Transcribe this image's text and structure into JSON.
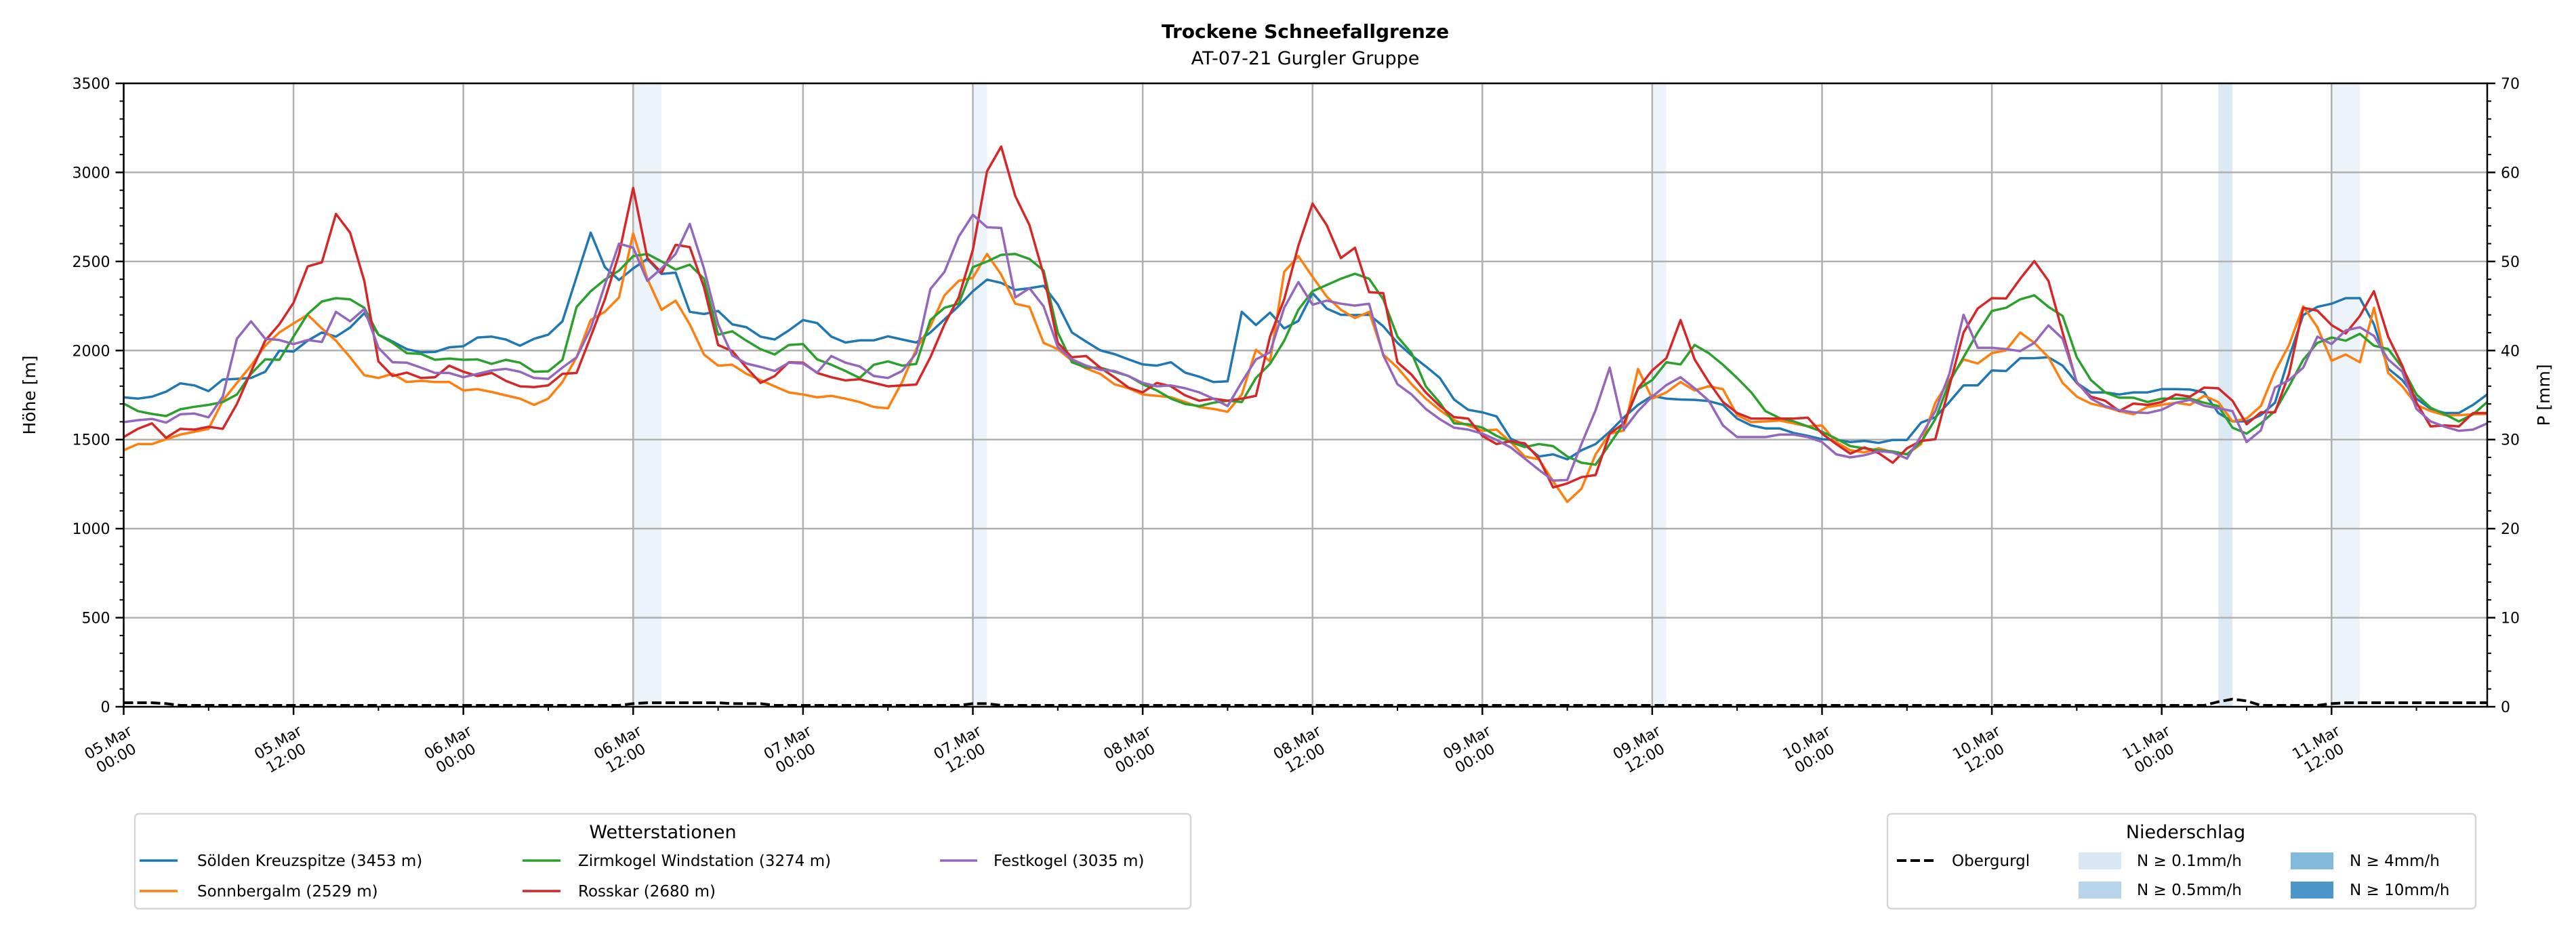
{
  "chart_data": {
    "type": "line",
    "title": "Trockene Schneefallgrenze",
    "subtitle": "AT-07-21 Gurgler Gruppe",
    "ylabel": "Höhe [m]",
    "ylabel_right": "P [mm]",
    "ylim": [
      0,
      3500
    ],
    "ylim_right": [
      0,
      70
    ],
    "yticks": [
      "0",
      "500",
      "1000",
      "1500",
      "2000",
      "2500",
      "3000",
      "3500"
    ],
    "yticks_right": [
      "0",
      "10",
      "20",
      "30",
      "40",
      "50",
      "60",
      "70"
    ],
    "x_unit": "hours since 05.Mar 00:00",
    "x_range_hours": [
      0,
      167
    ],
    "grid": true,
    "xticks": [
      {
        "date": "05.Mar",
        "time": "00:00"
      },
      {
        "date": "05.Mar",
        "time": "12:00"
      },
      {
        "date": "06.Mar",
        "time": "00:00"
      },
      {
        "date": "06.Mar",
        "time": "12:00"
      },
      {
        "date": "07.Mar",
        "time": "00:00"
      },
      {
        "date": "07.Mar",
        "time": "12:00"
      },
      {
        "date": "08.Mar",
        "time": "00:00"
      },
      {
        "date": "08.Mar",
        "time": "12:00"
      },
      {
        "date": "09.Mar",
        "time": "00:00"
      },
      {
        "date": "09.Mar",
        "time": "12:00"
      },
      {
        "date": "10.Mar",
        "time": "00:00"
      },
      {
        "date": "10.Mar",
        "time": "12:00"
      },
      {
        "date": "11.Mar",
        "time": "00:00"
      },
      {
        "date": "11.Mar",
        "time": "12:00"
      }
    ],
    "series": [
      {
        "name": "Sölden Kreuzspitze (3453 m)",
        "color": "#1f77b4",
        "values": [
          1737,
          1730,
          1741,
          1769,
          1816,
          1804,
          1772,
          1837,
          1841,
          1846,
          1881,
          1999,
          1994,
          2055,
          2101,
          2078,
          2129,
          2210,
          2089,
          2050,
          2008,
          1990,
          1992,
          2018,
          2024,
          2073,
          2078,
          2062,
          2027,
          2066,
          2089,
          2164,
          2414,
          2662,
          2468,
          2396,
          2461,
          2514,
          2430,
          2437,
          2217,
          2205,
          2222,
          2147,
          2131,
          2078,
          2062,
          2113,
          2171,
          2154,
          2078,
          2045,
          2057,
          2057,
          2080,
          2062,
          2045,
          2101,
          2175,
          2250,
          2333,
          2398,
          2380,
          2340,
          2350,
          2363,
          2259,
          2101,
          2050,
          2001,
          1980,
          1950,
          1922,
          1915,
          1934,
          1876,
          1853,
          1823,
          1827,
          2217,
          2143,
          2213,
          2124,
          2166,
          2322,
          2236,
          2201,
          2199,
          2201,
          2136,
          2043,
          1973,
          1911,
          1846,
          1725,
          1667,
          1653,
          1630,
          1505,
          1470,
          1405,
          1417,
          1389,
          1440,
          1475,
          1544,
          1625,
          1695,
          1746,
          1730,
          1725,
          1723,
          1716,
          1695,
          1618,
          1579,
          1563,
          1563,
          1537,
          1521,
          1502,
          1498,
          1486,
          1493,
          1481,
          1498,
          1498,
          1595,
          1625,
          1711,
          1804,
          1804,
          1888,
          1885,
          1957,
          1957,
          1962,
          1915,
          1818,
          1765,
          1765,
          1753,
          1765,
          1765,
          1783,
          1783,
          1781,
          1765,
          1649,
          1602,
          1602,
          1637,
          1707,
          1962,
          2199,
          2245,
          2263,
          2294,
          2294,
          2147,
          1899,
          1834,
          1730,
          1672,
          1649,
          1649,
          1695,
          1753
        ]
      },
      {
        "name": "Sonnbergalm (2529 m)",
        "color": "#ff7f0e",
        "values": [
          1440,
          1475,
          1475,
          1502,
          1528,
          1544,
          1560,
          1718,
          1818,
          1915,
          2027,
          2101,
          2152,
          2201,
          2124,
          2055,
          1962,
          1862,
          1846,
          1869,
          1823,
          1830,
          1823,
          1823,
          1776,
          1783,
          1767,
          1748,
          1730,
          1695,
          1730,
          1823,
          1962,
          2171,
          2217,
          2298,
          2658,
          2403,
          2229,
          2280,
          2147,
          1978,
          1915,
          1920,
          1869,
          1834,
          1799,
          1765,
          1753,
          1737,
          1746,
          1730,
          1711,
          1683,
          1676,
          1823,
          2008,
          2136,
          2310,
          2391,
          2408,
          2542,
          2426,
          2263,
          2245,
          2043,
          2008,
          1943,
          1899,
          1869,
          1811,
          1788,
          1753,
          1746,
          1737,
          1711,
          1683,
          1672,
          1656,
          1753,
          2004,
          1939,
          2442,
          2530,
          2414,
          2303,
          2229,
          2182,
          2217,
          1978,
          1904,
          1811,
          1730,
          1665,
          1609,
          1579,
          1549,
          1556,
          1486,
          1405,
          1389,
          1266,
          1150,
          1224,
          1417,
          1533,
          1551,
          1897,
          1730,
          1765,
          1823,
          1776,
          1799,
          1783,
          1637,
          1598,
          1602,
          1607,
          1591,
          1574,
          1579,
          1486,
          1440,
          1428,
          1451,
          1428,
          1417,
          1475,
          1707,
          1834,
          1950,
          1927,
          1985,
          2001,
          2101,
          2043,
          1962,
          1818,
          1741,
          1702,
          1683,
          1660,
          1642,
          1683,
          1695,
          1707,
          1695,
          1746,
          1711,
          1602,
          1618,
          1688,
          1881,
          2031,
          2248,
          2131,
          1943,
          1978,
          1934,
          2240,
          1874,
          1799,
          1695,
          1660,
          1637,
          1637,
          1642,
          1644
        ]
      },
      {
        "name": "Zirmkogel Windstation (3274 m)",
        "color": "#2ca02c",
        "values": [
          1702,
          1660,
          1644,
          1632,
          1670,
          1684,
          1695,
          1711,
          1753,
          1869,
          1950,
          1948,
          2078,
          2205,
          2275,
          2294,
          2287,
          2240,
          2089,
          2043,
          1985,
          1981,
          1948,
          1955,
          1948,
          1950,
          1925,
          1948,
          1932,
          1881,
          1883,
          1948,
          2245,
          2333,
          2398,
          2449,
          2530,
          2542,
          2500,
          2454,
          2482,
          2403,
          2089,
          2108,
          2055,
          2008,
          1978,
          2031,
          2036,
          1950,
          1920,
          1885,
          1846,
          1920,
          1939,
          1915,
          1925,
          2171,
          2240,
          2263,
          2468,
          2500,
          2537,
          2542,
          2514,
          2449,
          2101,
          1934,
          1904,
          1904,
          1881,
          1857,
          1811,
          1776,
          1730,
          1700,
          1688,
          1707,
          1718,
          1711,
          1846,
          1925,
          2055,
          2229,
          2333,
          2368,
          2403,
          2431,
          2403,
          2287,
          2078,
          1985,
          1799,
          1707,
          1591,
          1586,
          1567,
          1521,
          1486,
          1458,
          1475,
          1463,
          1405,
          1370,
          1359,
          1475,
          1591,
          1783,
          1834,
          1934,
          1922,
          2031,
          1985,
          1920,
          1846,
          1765,
          1660,
          1621,
          1602,
          1574,
          1544,
          1505,
          1463,
          1451,
          1440,
          1433,
          1417,
          1486,
          1614,
          1823,
          1962,
          2101,
          2222,
          2240,
          2287,
          2310,
          2245,
          2194,
          1962,
          1834,
          1765,
          1735,
          1735,
          1711,
          1730,
          1730,
          1730,
          1707,
          1688,
          1567,
          1533,
          1591,
          1660,
          1799,
          1948,
          2043,
          2073,
          2055,
          2094,
          2027,
          2008,
          1904,
          1753,
          1679,
          1642,
          1602,
          1642,
          1711
        ]
      },
      {
        "name": "Rosskar (2680 m)",
        "color": "#d62728",
        "values": [
          1514,
          1560,
          1591,
          1510,
          1560,
          1556,
          1572,
          1560,
          1700,
          1881,
          2055,
          2147,
          2268,
          2472,
          2495,
          2767,
          2662,
          2391,
          1939,
          1857,
          1876,
          1846,
          1850,
          1915,
          1881,
          1857,
          1874,
          1830,
          1799,
          1795,
          1804,
          1869,
          1874,
          2078,
          2287,
          2542,
          2913,
          2519,
          2437,
          2593,
          2581,
          2356,
          2031,
          1997,
          1904,
          1818,
          1857,
          1934,
          1932,
          1874,
          1850,
          1832,
          1839,
          1818,
          1799,
          1804,
          1809,
          1962,
          2147,
          2298,
          2565,
          3006,
          3145,
          2867,
          2704,
          2426,
          2043,
          1962,
          1969,
          1904,
          1850,
          1792,
          1765,
          1818,
          1799,
          1748,
          1718,
          1730,
          1718,
          1730,
          1746,
          2078,
          2287,
          2588,
          2825,
          2704,
          2519,
          2577,
          2328,
          2322,
          1934,
          1864,
          1765,
          1688,
          1626,
          1618,
          1521,
          1475,
          1491,
          1479,
          1393,
          1231,
          1254,
          1289,
          1301,
          1533,
          1591,
          1788,
          1888,
          1957,
          2171,
          1950,
          1823,
          1711,
          1649,
          1618,
          1618,
          1618,
          1618,
          1623,
          1533,
          1475,
          1421,
          1456,
          1424,
          1370,
          1451,
          1493,
          1502,
          1799,
          2101,
          2236,
          2294,
          2292,
          2403,
          2502,
          2391,
          2101,
          1818,
          1741,
          1718,
          1660,
          1702,
          1695,
          1711,
          1753,
          1741,
          1792,
          1788,
          1718,
          1586,
          1653,
          1653,
          1869,
          2240,
          2224,
          2143,
          2096,
          2194,
          2333,
          2078,
          1915,
          1707,
          1574,
          1579,
          1574,
          1649,
          1649
        ]
      },
      {
        "name": "Festkogel (3035 m)",
        "color": "#9467bd",
        "values": [
          1598,
          1609,
          1616,
          1595,
          1642,
          1646,
          1625,
          1741,
          2066,
          2164,
          2066,
          2059,
          2036,
          2059,
          2048,
          2217,
          2164,
          2233,
          2015,
          1934,
          1932,
          1904,
          1874,
          1874,
          1850,
          1869,
          1888,
          1897,
          1881,
          1846,
          1841,
          1904,
          1962,
          2124,
          2368,
          2600,
          2577,
          2391,
          2461,
          2542,
          2711,
          2461,
          2147,
          1973,
          1927,
          1908,
          1885,
          1932,
          1927,
          1876,
          1969,
          1932,
          1911,
          1857,
          1846,
          1885,
          1985,
          2345,
          2442,
          2639,
          2762,
          2692,
          2688,
          2298,
          2350,
          2248,
          2020,
          1950,
          1915,
          1892,
          1885,
          1857,
          1818,
          1799,
          1804,
          1788,
          1765,
          1730,
          1688,
          1823,
          1950,
          1990,
          2240,
          2384,
          2257,
          2280,
          2263,
          2252,
          2263,
          1973,
          1811,
          1753,
          1672,
          1614,
          1567,
          1556,
          1533,
          1498,
          1456,
          1393,
          1330,
          1270,
          1273,
          1475,
          1665,
          1904,
          1556,
          1660,
          1741,
          1806,
          1850,
          1788,
          1718,
          1579,
          1514,
          1514,
          1514,
          1528,
          1528,
          1514,
          1486,
          1417,
          1400,
          1412,
          1435,
          1428,
          1393,
          1521,
          1660,
          1869,
          2201,
          2015,
          2015,
          2008,
          1997,
          2043,
          2141,
          2066,
          1823,
          1730,
          1688,
          1665,
          1653,
          1649,
          1667,
          1707,
          1723,
          1690,
          1676,
          1660,
          1486,
          1551,
          1792,
          1834,
          1904,
          2078,
          2036,
          2113,
          2131,
          2082,
          1950,
          1881,
          1672,
          1602,
          1572,
          1549,
          1556,
          1591
        ]
      }
    ],
    "precipitation": {
      "name": "Obergurgl",
      "color": "#000000",
      "nonzero_hours": [
        0,
        1,
        2,
        3,
        36,
        37,
        38,
        39,
        40,
        41,
        42,
        43,
        44,
        45,
        60,
        61,
        148,
        149,
        150,
        156,
        157,
        158,
        159,
        160,
        161,
        162,
        163,
        164,
        165,
        166,
        167
      ],
      "nonzero_values_mm": [
        0.3,
        0.3,
        0.3,
        0.2,
        0.2,
        0.3,
        0.3,
        0.3,
        0.3,
        0.3,
        0.3,
        0.2,
        0.2,
        0.2,
        0.2,
        0.2,
        0.4,
        0.7,
        0.5,
        0.2,
        0.3,
        0.3,
        0.3,
        0.3,
        0.3,
        0.3,
        0.3,
        0.3,
        0.3,
        0.3,
        0.3
      ]
    },
    "precip_bands": [
      {
        "start_hour": 36,
        "end_hour": 38,
        "level": 0
      },
      {
        "start_hour": 60,
        "end_hour": 61,
        "level": 0
      },
      {
        "start_hour": 108,
        "end_hour": 109,
        "level": 0
      },
      {
        "start_hour": 148,
        "end_hour": 149,
        "level": 1
      },
      {
        "start_hour": 156,
        "end_hour": 158,
        "level": 0
      }
    ],
    "legend_stations": {
      "title": "Wetterstationen",
      "placement": "bottom-left"
    },
    "legend_precip": {
      "title": "Niederschlag",
      "placement": "bottom-right",
      "line_label": "Obergurgl",
      "levels": [
        {
          "label": "N ≥ 0.1mm/h",
          "color": "#d9e7f5"
        },
        {
          "label": "N ≥ 0.5mm/h",
          "color": "#b7d4ea"
        },
        {
          "label": "N ≥ 4mm/h",
          "color": "#82badb"
        },
        {
          "label": "N ≥ 10mm/h",
          "color": "#4b97c9"
        }
      ]
    }
  }
}
